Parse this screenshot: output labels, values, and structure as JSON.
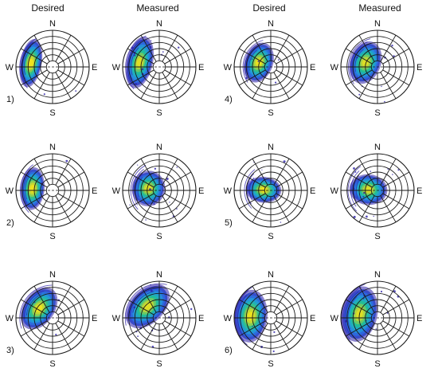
{
  "column_headers": [
    "Desired",
    "Measured",
    "Desired",
    "Measured"
  ],
  "directions": {
    "n": "N",
    "s": "S",
    "e": "E",
    "w": "W"
  },
  "colors": {
    "grid": "#1a1a1a",
    "colormap": [
      "#2b1fa8",
      "#2f5fe0",
      "#1fa3d8",
      "#22c08f",
      "#b7d23a",
      "#f2e31c"
    ]
  },
  "chart_data": [
    {
      "type": "heatmap",
      "label": "1)",
      "column": "Desired",
      "pattern": {
        "azimuth_deg": 280,
        "radius": 0.6,
        "spread_az_deg": 26,
        "spread_r": 0.16,
        "intensity": 1.0,
        "noise": 0.05
      }
    },
    {
      "type": "heatmap",
      "label": "",
      "column": "Measured",
      "pattern": {
        "azimuth_deg": 283,
        "radius": 0.55,
        "spread_az_deg": 30,
        "spread_r": 0.2,
        "intensity": 0.95,
        "noise": 0.3
      }
    },
    {
      "type": "heatmap",
      "label": "4)",
      "column": "Desired",
      "pattern": {
        "azimuth_deg": 290,
        "radius": 0.35,
        "spread_az_deg": 30,
        "spread_r": 0.22,
        "intensity": 1.0,
        "noise": 0.12
      }
    },
    {
      "type": "heatmap",
      "label": "",
      "column": "Measured",
      "pattern": {
        "azimuth_deg": 290,
        "radius": 0.35,
        "spread_az_deg": 32,
        "spread_r": 0.24,
        "intensity": 0.95,
        "noise": 0.3
      }
    },
    {
      "type": "heatmap",
      "label": "2)",
      "column": "Desired",
      "pattern": {
        "azimuth_deg": 275,
        "radius": 0.55,
        "spread_az_deg": 24,
        "spread_r": 0.18,
        "intensity": 1.0,
        "noise": 0.06
      }
    },
    {
      "type": "heatmap",
      "label": "",
      "column": "Measured",
      "pattern": {
        "azimuth_deg": 280,
        "radius": 0.3,
        "spread_az_deg": 28,
        "spread_r": 0.26,
        "intensity": 0.95,
        "noise": 0.3
      }
    },
    {
      "type": "heatmap",
      "label": "5)",
      "column": "Desired",
      "pattern": {
        "azimuth_deg": 275,
        "radius": 0.2,
        "spread_az_deg": 24,
        "spread_r": 0.28,
        "intensity": 1.0,
        "noise": 0.1
      }
    },
    {
      "type": "heatmap",
      "label": "",
      "column": "Measured",
      "pattern": {
        "azimuth_deg": 275,
        "radius": 0.25,
        "spread_az_deg": 26,
        "spread_r": 0.3,
        "intensity": 0.95,
        "noise": 0.3
      }
    },
    {
      "type": "heatmap",
      "label": "3)",
      "column": "Desired",
      "pattern": {
        "azimuth_deg": 305,
        "radius": 0.45,
        "spread_az_deg": 30,
        "spread_r": 0.24,
        "intensity": 1.0,
        "noise": 0.08
      }
    },
    {
      "type": "heatmap",
      "label": "",
      "column": "Measured",
      "pattern": {
        "azimuth_deg": 315,
        "radius": 0.45,
        "spread_az_deg": 34,
        "spread_r": 0.26,
        "intensity": 0.95,
        "noise": 0.3
      }
    },
    {
      "type": "heatmap",
      "label": "6)",
      "column": "Desired",
      "pattern": {
        "azimuth_deg": 275,
        "radius": 0.55,
        "spread_az_deg": 30,
        "spread_r": 0.26,
        "intensity": 1.0,
        "noise": 0.1
      }
    },
    {
      "type": "heatmap",
      "label": "",
      "column": "Measured",
      "pattern": {
        "azimuth_deg": 282,
        "radius": 0.5,
        "spread_az_deg": 34,
        "spread_r": 0.28,
        "intensity": 0.95,
        "noise": 0.3
      }
    }
  ]
}
